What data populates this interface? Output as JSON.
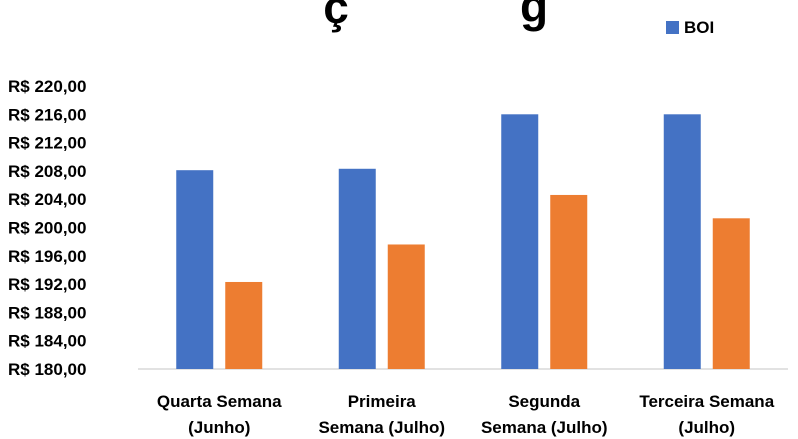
{
  "chart_data": {
    "type": "bar",
    "title": "",
    "title_visible_fragments": [
      "ç",
      "g"
    ],
    "xlabel": "",
    "ylabel": "",
    "categories": [
      [
        "Quarta Semana",
        "(Junho)"
      ],
      [
        "Primeira",
        "Semana (Julho)"
      ],
      [
        "Segunda",
        "Semana (Julho)"
      ],
      [
        "Terceira Semana",
        "(Julho)"
      ]
    ],
    "series": [
      {
        "name": "BOI",
        "color": "#4472C4",
        "values": [
          208.1,
          208.3,
          216.0,
          216.0
        ]
      },
      {
        "name": "",
        "color": "#ED7D31",
        "values": [
          192.3,
          197.6,
          204.6,
          201.3
        ]
      }
    ],
    "ylim": [
      180,
      220
    ],
    "yticks": [
      180,
      184,
      188,
      192,
      196,
      200,
      204,
      208,
      212,
      216,
      220
    ],
    "ytick_labels": [
      "R$ 180,00",
      "R$ 184,00",
      "R$ 188,00",
      "R$ 192,00",
      "R$ 196,00",
      "R$ 200,00",
      "R$ 204,00",
      "R$ 208,00",
      "R$ 212,00",
      "R$ 216,00",
      "R$ 220,00"
    ],
    "grid": false,
    "legend": {
      "placement": "top-right",
      "entries": [
        {
          "name": "BOI",
          "color": "#4472C4"
        }
      ]
    }
  }
}
